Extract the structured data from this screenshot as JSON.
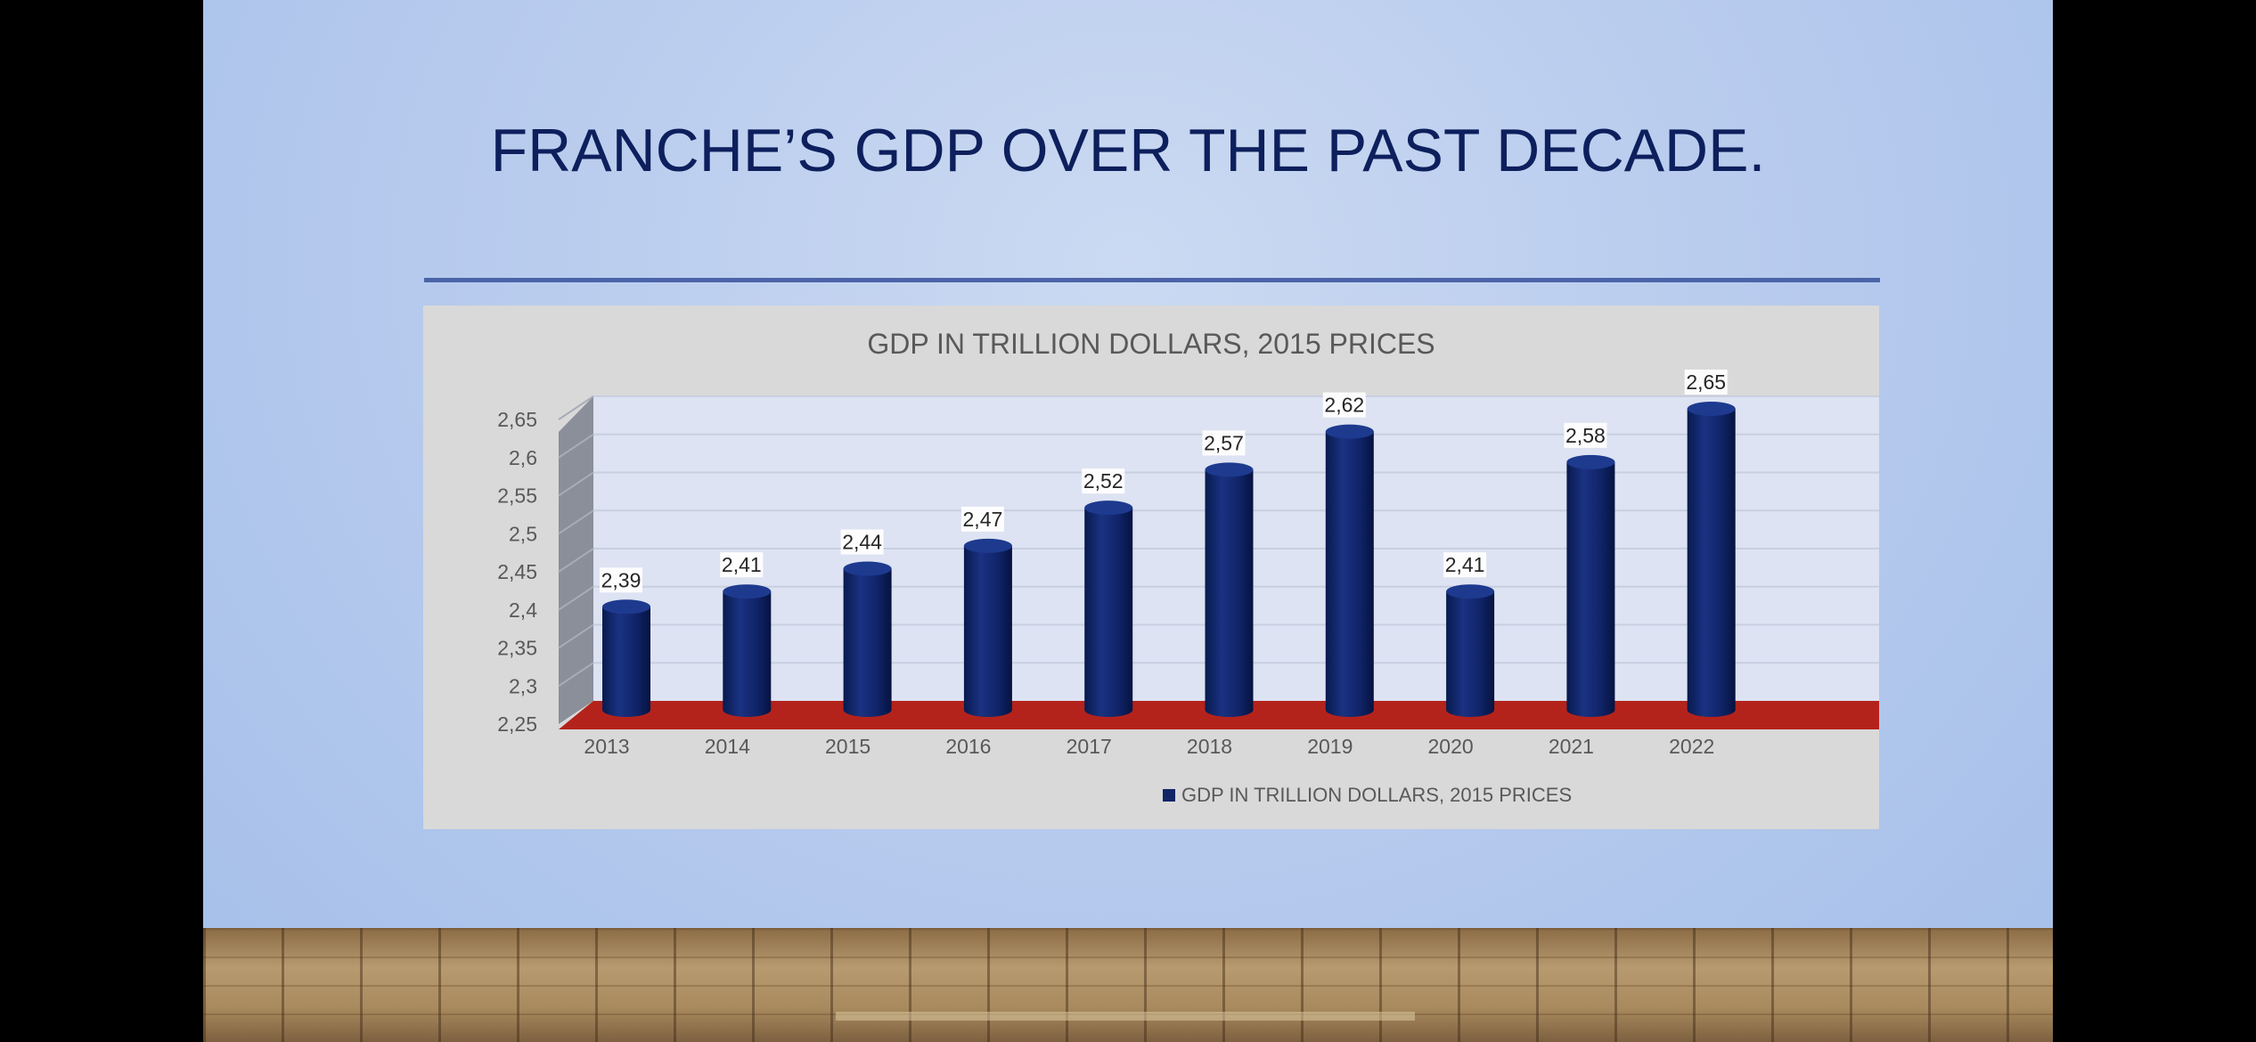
{
  "slide": {
    "title": "FRANCHE’S GDP OVER THE PAST DECADE."
  },
  "colors": {
    "bar": "#0f2566",
    "floor": "#b4231b",
    "wall": "#dde3f2",
    "side_wall": "#8a8f99",
    "panel": "#d9d9d9",
    "title": "#0d1f5c"
  },
  "chart_data": {
    "type": "bar",
    "style": "3d-cylinder",
    "title": "GDP IN TRILLION DOLLARS, 2015 PRICES",
    "categories": [
      "2013",
      "2014",
      "2015",
      "2016",
      "2017",
      "2018",
      "2019",
      "2020",
      "2021",
      "2022"
    ],
    "series": [
      {
        "name": "GDP IN TRILLION DOLLARS, 2015 PRICES",
        "values": [
          2.39,
          2.41,
          2.44,
          2.47,
          2.52,
          2.57,
          2.62,
          2.41,
          2.58,
          2.65
        ],
        "labels": [
          "2,39",
          "2,41",
          "2,44",
          "2,47",
          "2,52",
          "2,57",
          "2,62",
          "2,41",
          "2,58",
          "2,65"
        ]
      }
    ],
    "ylim": [
      2.25,
      2.65
    ],
    "yticks": [
      2.25,
      2.3,
      2.35,
      2.4,
      2.45,
      2.5,
      2.55,
      2.6,
      2.65
    ],
    "ytick_labels": [
      "2,25",
      "2,3",
      "2,35",
      "2,4",
      "2,45",
      "2,5",
      "2,55",
      "2,6",
      "2,65"
    ],
    "grid": true,
    "legend": "bottom",
    "xlabel": "",
    "ylabel": ""
  }
}
